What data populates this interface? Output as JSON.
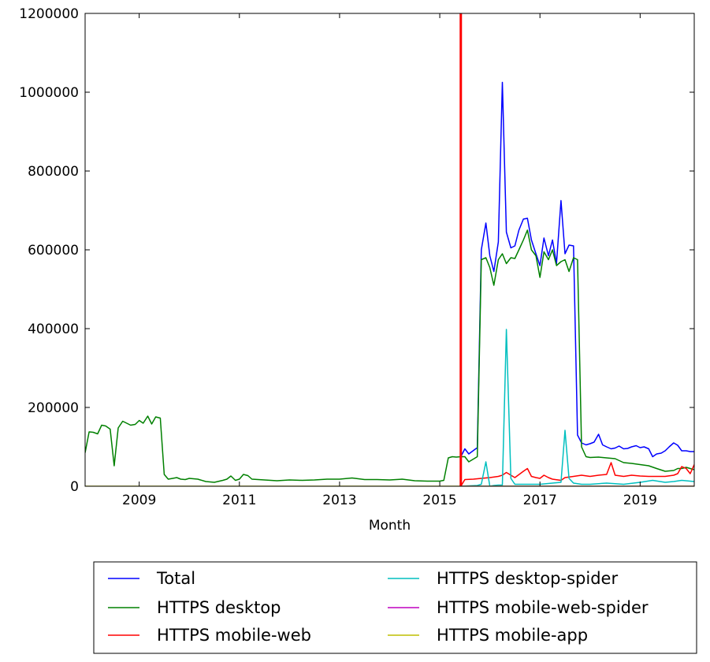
{
  "chart_data": {
    "type": "line",
    "title": "",
    "xlabel": "Month",
    "ylabel": "",
    "xlim": [
      2007.92,
      2020.08
    ],
    "ylim": [
      0,
      1200000
    ],
    "x_ticks": [
      2009,
      2011,
      2013,
      2015,
      2017,
      2019
    ],
    "x_tick_labels": [
      "2009",
      "2011",
      "2013",
      "2015",
      "2017",
      "2019"
    ],
    "y_ticks": [
      0,
      200000,
      400000,
      600000,
      800000,
      1000000,
      1200000
    ],
    "y_tick_labels": [
      "0",
      "200000",
      "400000",
      "600000",
      "800000",
      "1000000",
      "1200000"
    ],
    "grid": false,
    "legend_position": "bottom, below axes, 2 columns",
    "vline": {
      "x": 2015.42,
      "color": "#ff0000"
    },
    "series": [
      {
        "name": "Total",
        "color": "#0000ff",
        "x": [
          2015.42,
          2015.5,
          2015.58,
          2015.75,
          2015.83,
          2015.92,
          2016.0,
          2016.08,
          2016.17,
          2016.25,
          2016.33,
          2016.42,
          2016.5,
          2016.58,
          2016.67,
          2016.75,
          2016.83,
          2016.92,
          2017.0,
          2017.08,
          2017.17,
          2017.25,
          2017.33,
          2017.42,
          2017.5,
          2017.58,
          2017.67,
          2017.75,
          2017.83,
          2017.92,
          2018.0,
          2018.08,
          2018.17,
          2018.25,
          2018.33,
          2018.42,
          2018.5,
          2018.58,
          2018.67,
          2018.75,
          2018.83,
          2018.92,
          2019.0,
          2019.08,
          2019.17,
          2019.25,
          2019.33,
          2019.42,
          2019.5,
          2019.58,
          2019.67,
          2019.75,
          2019.83,
          2019.92,
          2020.0,
          2020.08
        ],
        "y": [
          75000,
          95000,
          82000,
          98000,
          600000,
          668000,
          585000,
          545000,
          620000,
          1025000,
          645000,
          605000,
          610000,
          650000,
          678000,
          680000,
          625000,
          590000,
          560000,
          630000,
          585000,
          625000,
          565000,
          725000,
          590000,
          612000,
          610000,
          130000,
          110000,
          105000,
          108000,
          112000,
          132000,
          105000,
          100000,
          95000,
          97000,
          102000,
          95000,
          96000,
          100000,
          103000,
          98000,
          100000,
          95000,
          75000,
          82000,
          84000,
          90000,
          100000,
          110000,
          104000,
          90000,
          90000,
          88000,
          88000
        ]
      },
      {
        "name": "HTTPS desktop",
        "color": "#008000",
        "x": [
          2007.92,
          2008.0,
          2008.08,
          2008.17,
          2008.25,
          2008.33,
          2008.42,
          2008.5,
          2008.58,
          2008.67,
          2008.75,
          2008.83,
          2008.92,
          2009.0,
          2009.08,
          2009.17,
          2009.25,
          2009.33,
          2009.42,
          2009.5,
          2009.58,
          2009.67,
          2009.75,
          2009.83,
          2009.92,
          2010.0,
          2010.17,
          2010.33,
          2010.5,
          2010.67,
          2010.75,
          2010.83,
          2010.92,
          2011.0,
          2011.08,
          2011.17,
          2011.25,
          2011.5,
          2011.75,
          2012.0,
          2012.25,
          2012.5,
          2012.75,
          2013.0,
          2013.25,
          2013.5,
          2013.75,
          2014.0,
          2014.25,
          2014.5,
          2014.75,
          2015.0,
          2015.08,
          2015.17,
          2015.25,
          2015.33,
          2015.42,
          2015.5,
          2015.58,
          2015.75,
          2015.83,
          2015.92,
          2016.0,
          2016.08,
          2016.17,
          2016.25,
          2016.33,
          2016.42,
          2016.5,
          2016.58,
          2016.67,
          2016.75,
          2016.83,
          2016.92,
          2017.0,
          2017.08,
          2017.17,
          2017.25,
          2017.33,
          2017.42,
          2017.5,
          2017.58,
          2017.67,
          2017.75,
          2017.83,
          2017.92,
          2018.0,
          2018.17,
          2018.33,
          2018.5,
          2018.67,
          2018.83,
          2019.0,
          2019.17,
          2019.33,
          2019.5,
          2019.67,
          2019.75,
          2019.83,
          2019.92,
          2020.0,
          2020.08
        ],
        "y": [
          85000,
          138000,
          137000,
          133000,
          155000,
          153000,
          145000,
          52000,
          148000,
          165000,
          160000,
          155000,
          157000,
          167000,
          160000,
          178000,
          158000,
          176000,
          173000,
          30000,
          18000,
          20000,
          22000,
          18000,
          17000,
          20000,
          18000,
          12000,
          10000,
          15000,
          18000,
          26000,
          15000,
          18000,
          30000,
          27000,
          18000,
          16000,
          14000,
          16000,
          15000,
          16000,
          18000,
          18000,
          21000,
          17000,
          17000,
          16000,
          18000,
          14000,
          13000,
          13000,
          15000,
          72000,
          75000,
          74000,
          75000,
          75000,
          62000,
          75000,
          575000,
          580000,
          555000,
          510000,
          575000,
          590000,
          565000,
          580000,
          578000,
          600000,
          625000,
          650000,
          600000,
          585000,
          530000,
          595000,
          575000,
          600000,
          560000,
          570000,
          575000,
          545000,
          580000,
          575000,
          100000,
          75000,
          73000,
          74000,
          72000,
          70000,
          60000,
          58000,
          55000,
          52000,
          45000,
          38000,
          40000,
          45000,
          45000,
          48000,
          45000,
          42000
        ]
      },
      {
        "name": "HTTPS mobile-web",
        "color": "#ff0000",
        "x": [
          2015.42,
          2015.5,
          2015.67,
          2015.83,
          2016.0,
          2016.17,
          2016.25,
          2016.33,
          2016.42,
          2016.5,
          2016.67,
          2016.75,
          2016.83,
          2016.92,
          2017.0,
          2017.08,
          2017.17,
          2017.25,
          2017.42,
          2017.5,
          2017.67,
          2017.83,
          2018.0,
          2018.17,
          2018.33,
          2018.42,
          2018.5,
          2018.67,
          2018.83,
          2019.0,
          2019.17,
          2019.33,
          2019.5,
          2019.67,
          2019.75,
          2019.83,
          2019.92,
          2020.0,
          2020.08
        ],
        "y": [
          0,
          17000,
          18000,
          20000,
          22000,
          25000,
          28000,
          35000,
          28000,
          22000,
          38000,
          45000,
          25000,
          22000,
          20000,
          28000,
          22000,
          18000,
          15000,
          22000,
          25000,
          28000,
          25000,
          28000,
          30000,
          60000,
          28000,
          25000,
          28000,
          26000,
          25000,
          25000,
          25000,
          28000,
          32000,
          50000,
          45000,
          32000,
          55000
        ]
      },
      {
        "name": "HTTPS desktop-spider",
        "color": "#00bfbf",
        "x": [
          2015.42,
          2015.75,
          2015.83,
          2015.92,
          2016.0,
          2016.08,
          2016.17,
          2016.25,
          2016.33,
          2016.42,
          2016.5,
          2016.67,
          2016.83,
          2017.0,
          2017.25,
          2017.42,
          2017.5,
          2017.58,
          2017.67,
          2017.83,
          2018.0,
          2018.33,
          2018.67,
          2019.0,
          2019.25,
          2019.5,
          2019.67,
          2019.83,
          2020.08
        ],
        "y": [
          0,
          2000,
          5000,
          62000,
          0,
          2000,
          3000,
          3000,
          398000,
          20000,
          5000,
          5000,
          5000,
          5000,
          8000,
          10000,
          142000,
          20000,
          8000,
          5000,
          5000,
          8000,
          5000,
          10000,
          15000,
          10000,
          12000,
          15000,
          12000
        ]
      },
      {
        "name": "HTTPS mobile-web-spider",
        "color": "#bf00bf",
        "x": [
          2015.42,
          2020.08
        ],
        "y": [
          0,
          0
        ]
      },
      {
        "name": "HTTPS mobile-app",
        "color": "#bfbf00",
        "x": [
          2007.92,
          2020.08
        ],
        "y": [
          0,
          0
        ]
      }
    ]
  }
}
